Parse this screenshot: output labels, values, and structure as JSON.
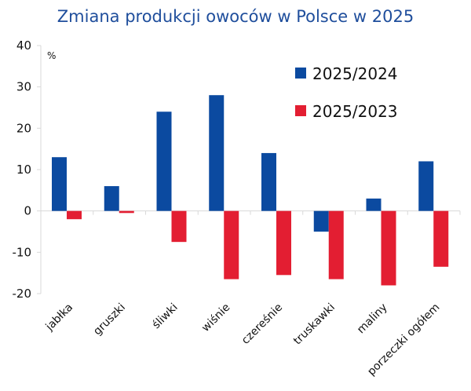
{
  "chart_data": {
    "type": "bar",
    "title": "Zmiana produkcji owoców w Polsce w 2025",
    "unit_label": "%",
    "xlabel": "",
    "ylabel": "",
    "ylim": [
      -20,
      40
    ],
    "yticks": [
      40,
      30,
      20,
      10,
      0,
      -10,
      -20
    ],
    "ytick_labels": [
      "40",
      "30",
      "20",
      "10",
      "0",
      "-10",
      "-20"
    ],
    "grid": false,
    "legend_position": "top-right",
    "categories": [
      "jabłka",
      "gruszki",
      "śliwki",
      "wiśnie",
      "czereśnie",
      "truskawki",
      "maliny",
      "porzeczki ogółem"
    ],
    "series": [
      {
        "name": "2025/2024",
        "color": "#0b4aa0",
        "values": [
          13,
          6,
          24,
          28,
          14,
          -5,
          3,
          12
        ]
      },
      {
        "name": "2025/2023",
        "color": "#e31e32",
        "values": [
          -2,
          -0.5,
          -7.5,
          -16.5,
          -15.5,
          -16.5,
          -18,
          -13.5
        ]
      }
    ]
  }
}
